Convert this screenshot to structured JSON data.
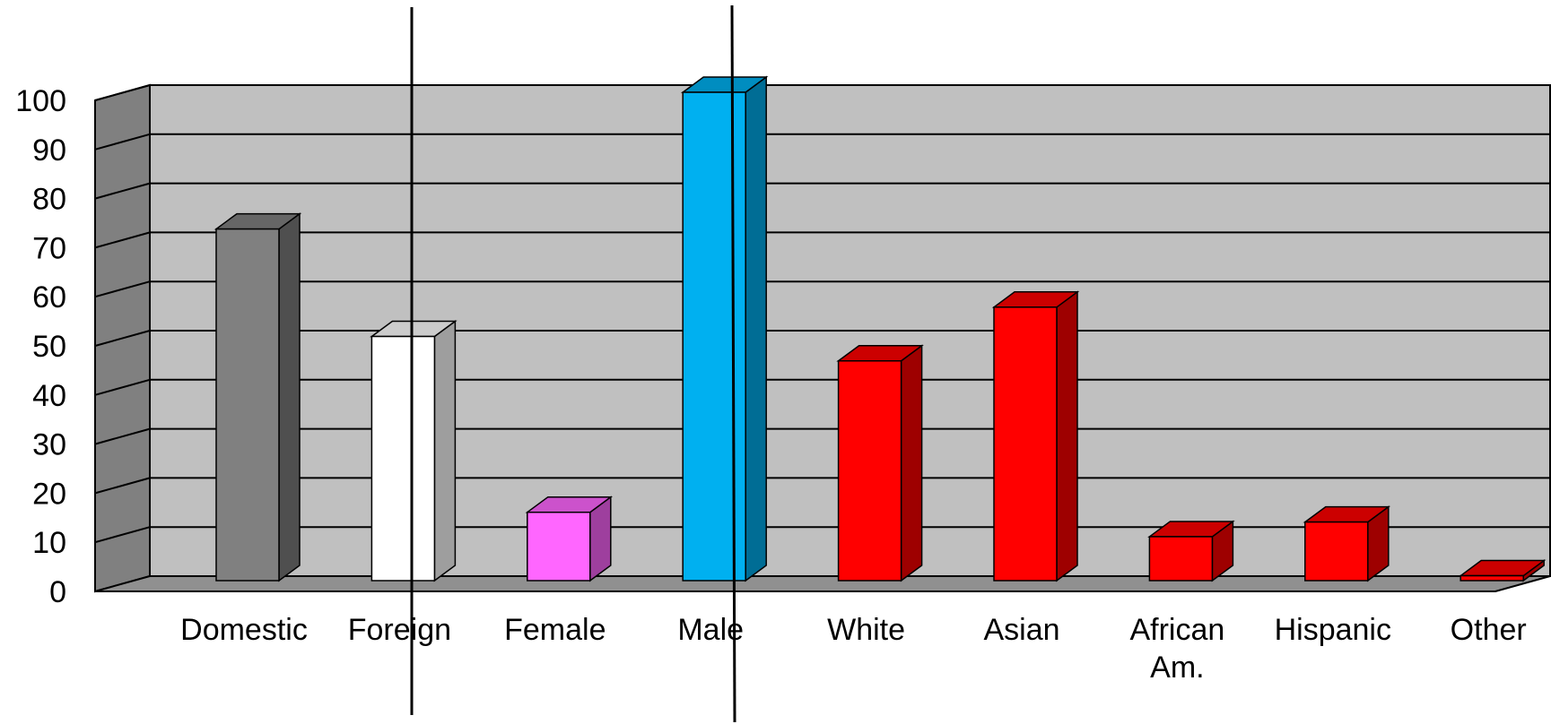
{
  "chart_data": {
    "type": "bar",
    "style": "3d-column",
    "title": "",
    "xlabel": "",
    "ylabel": "",
    "ylim": [
      0,
      100
    ],
    "yticks": [
      "0",
      "10",
      "20",
      "30",
      "40",
      "50",
      "60",
      "70",
      "80",
      "90",
      "100"
    ],
    "grid": true,
    "legend": "none",
    "categories": [
      [
        "Domestic"
      ],
      [
        "Foreign"
      ],
      [
        "Female"
      ],
      [
        "Male"
      ],
      [
        "White"
      ],
      [
        "Asian"
      ],
      [
        "African",
        "Am."
      ],
      [
        "Hispanic"
      ],
      [
        "Other"
      ]
    ],
    "values": [
      72,
      50,
      14,
      100,
      45,
      56,
      9,
      12,
      1
    ],
    "groups": [
      {
        "categories": [
          "Domestic",
          "Foreign"
        ]
      },
      {
        "categories": [
          "Female",
          "Male"
        ]
      },
      {
        "categories": [
          "White",
          "Asian",
          "African Am.",
          "Hispanic",
          "Other"
        ]
      }
    ],
    "bar_colors": [
      "#808080",
      "#ffffff",
      "#ff66ff",
      "#00b0f0",
      "#ff0000",
      "#ff0000",
      "#ff0000",
      "#ff0000",
      "#ff0000"
    ],
    "wall_color": "#c0c0c0",
    "side_wall_color": "#808080",
    "floor_color": "#909090"
  }
}
